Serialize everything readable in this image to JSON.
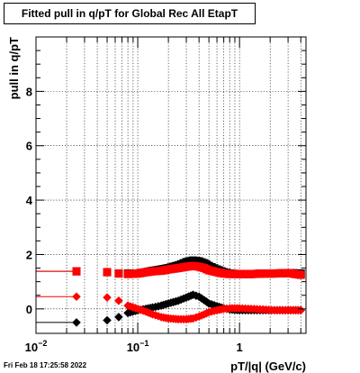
{
  "footer": {
    "timestamp": "Fri Feb 18 17:25:58 2022"
  },
  "colors": {
    "black_series": "#000000",
    "red_series": "#ff0000",
    "grid": "#000000",
    "frame": "#000000"
  },
  "chart_data": {
    "type": "scatter",
    "title": "Fitted pull in q/pT for Global Rec All EtapT",
    "xlabel": "pT/|q| (GeV/c)",
    "ylabel": "pull in q/pT",
    "x_scale": "log",
    "xlim": [
      0.01,
      4.5
    ],
    "ylim": [
      -0.9,
      10.0
    ],
    "grid": true,
    "x_major_ticks": [
      {
        "value": 0.01,
        "base": "10",
        "exp": "−2"
      },
      {
        "value": 0.1,
        "base": "10",
        "exp": "−1"
      },
      {
        "value": 1,
        "base": "1",
        "exp": ""
      }
    ],
    "y_ticks": [
      {
        "value": 0,
        "label": "0"
      },
      {
        "value": 2,
        "label": "2"
      },
      {
        "value": 4,
        "label": "4"
      },
      {
        "value": 6,
        "label": "6"
      },
      {
        "value": 8,
        "label": "8"
      }
    ],
    "series": [
      {
        "color": "#000000",
        "marker": "diamond",
        "role": "mean",
        "x": [
          0.025,
          0.05,
          0.065,
          0.08,
          0.1,
          0.12,
          0.14,
          0.17,
          0.2,
          0.25,
          0.3,
          0.35,
          0.4,
          0.45,
          0.5,
          0.6,
          0.7,
          0.8,
          1.0,
          1.3,
          1.7,
          2.2,
          3.0,
          4.0
        ],
        "y": [
          -0.5,
          -0.42,
          -0.3,
          -0.15,
          -0.05,
          0.0,
          0.05,
          0.12,
          0.2,
          0.3,
          0.42,
          0.52,
          0.45,
          0.32,
          0.2,
          0.1,
          0.02,
          -0.02,
          -0.05,
          -0.05,
          -0.05,
          -0.05,
          -0.05,
          -0.05
        ]
      },
      {
        "color": "#000000",
        "marker": "square",
        "role": "sigma",
        "x": [
          0.025,
          0.05,
          0.065,
          0.08,
          0.1,
          0.12,
          0.14,
          0.17,
          0.2,
          0.25,
          0.3,
          0.35,
          0.4,
          0.45,
          0.5,
          0.6,
          0.7,
          0.8,
          1.0,
          1.3,
          1.7,
          2.2,
          3.0,
          4.0
        ],
        "y": [
          1.38,
          1.35,
          1.3,
          1.3,
          1.3,
          1.35,
          1.4,
          1.45,
          1.5,
          1.6,
          1.72,
          1.78,
          1.75,
          1.68,
          1.58,
          1.45,
          1.35,
          1.3,
          1.28,
          1.28,
          1.3,
          1.3,
          1.32,
          1.3
        ]
      },
      {
        "color": "#ff0000",
        "marker": "diamond",
        "role": "mean",
        "x": [
          0.025,
          0.05,
          0.065,
          0.08,
          0.1,
          0.12,
          0.14,
          0.17,
          0.2,
          0.25,
          0.3,
          0.35,
          0.4,
          0.45,
          0.5,
          0.6,
          0.7,
          0.8,
          1.0,
          1.3,
          1.7,
          2.2,
          3.0,
          4.0
        ],
        "y": [
          0.45,
          0.42,
          0.3,
          0.12,
          0.0,
          -0.1,
          -0.2,
          -0.3,
          -0.35,
          -0.38,
          -0.38,
          -0.35,
          -0.28,
          -0.2,
          -0.12,
          -0.05,
          0.0,
          0.02,
          0.02,
          0.0,
          -0.02,
          -0.05,
          -0.05,
          -0.05
        ]
      },
      {
        "color": "#ff0000",
        "marker": "square",
        "role": "sigma",
        "x": [
          0.025,
          0.05,
          0.065,
          0.08,
          0.1,
          0.12,
          0.14,
          0.17,
          0.2,
          0.25,
          0.3,
          0.35,
          0.4,
          0.45,
          0.5,
          0.6,
          0.7,
          0.8,
          1.0,
          1.3,
          1.7,
          2.2,
          3.0,
          4.0
        ],
        "y": [
          1.38,
          1.35,
          1.3,
          1.28,
          1.3,
          1.35,
          1.38,
          1.4,
          1.45,
          1.5,
          1.55,
          1.58,
          1.55,
          1.5,
          1.42,
          1.35,
          1.3,
          1.28,
          1.28,
          1.28,
          1.3,
          1.3,
          1.32,
          1.25
        ]
      }
    ],
    "side_lines": [
      {
        "color": "#000000",
        "y": -0.5,
        "x_to": 0.025
      },
      {
        "color": "#ff0000",
        "y": 0.45,
        "x_to": 0.025
      },
      {
        "color": "#000000",
        "y": 1.38,
        "x_to": 0.025
      },
      {
        "color": "#ff0000",
        "y": 1.38,
        "x_to": 0.025
      }
    ]
  }
}
